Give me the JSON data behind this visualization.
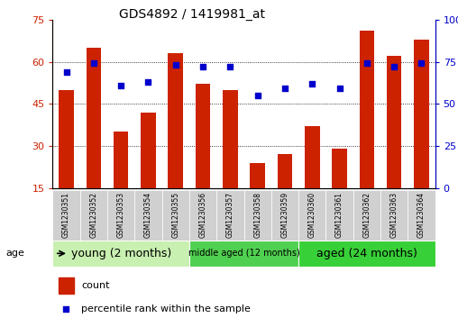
{
  "title": "GDS4892 / 1419981_at",
  "samples": [
    "GSM1230351",
    "GSM1230352",
    "GSM1230353",
    "GSM1230354",
    "GSM1230355",
    "GSM1230356",
    "GSM1230357",
    "GSM1230358",
    "GSM1230359",
    "GSM1230360",
    "GSM1230361",
    "GSM1230362",
    "GSM1230363",
    "GSM1230364"
  ],
  "counts": [
    50,
    65,
    35,
    42,
    63,
    52,
    50,
    24,
    27,
    37,
    29,
    71,
    62,
    68
  ],
  "percentiles": [
    69,
    74,
    61,
    63,
    73,
    72,
    72,
    55,
    59,
    62,
    59,
    74,
    72,
    74
  ],
  "bar_color": "#cc2200",
  "dot_color": "#0000cc",
  "bar_bottom": 15,
  "ylim_left": [
    15,
    75
  ],
  "ylim_right": [
    0,
    100
  ],
  "yticks_left": [
    15,
    30,
    45,
    60,
    75
  ],
  "yticks_right": [
    0,
    25,
    50,
    75,
    100
  ],
  "ytick_labels_right": [
    "0",
    "25",
    "50",
    "75",
    "100%"
  ],
  "groups": [
    {
      "label": "young (2 months)",
      "start": 0,
      "end": 5,
      "color": "#c8f0b0"
    },
    {
      "label": "middle aged (12 months)",
      "start": 5,
      "end": 9,
      "color": "#50d050"
    },
    {
      "label": "aged (24 months)",
      "start": 9,
      "end": 14,
      "color": "#38d038"
    }
  ],
  "age_label": "age",
  "legend_count": "count",
  "legend_percentile": "percentile rank within the sample",
  "tick_color_left": "#cc2200",
  "tick_color_right": "#0000cc",
  "grid_lines": [
    30,
    45,
    60
  ],
  "xticklabel_bg": "#d0d0d0"
}
